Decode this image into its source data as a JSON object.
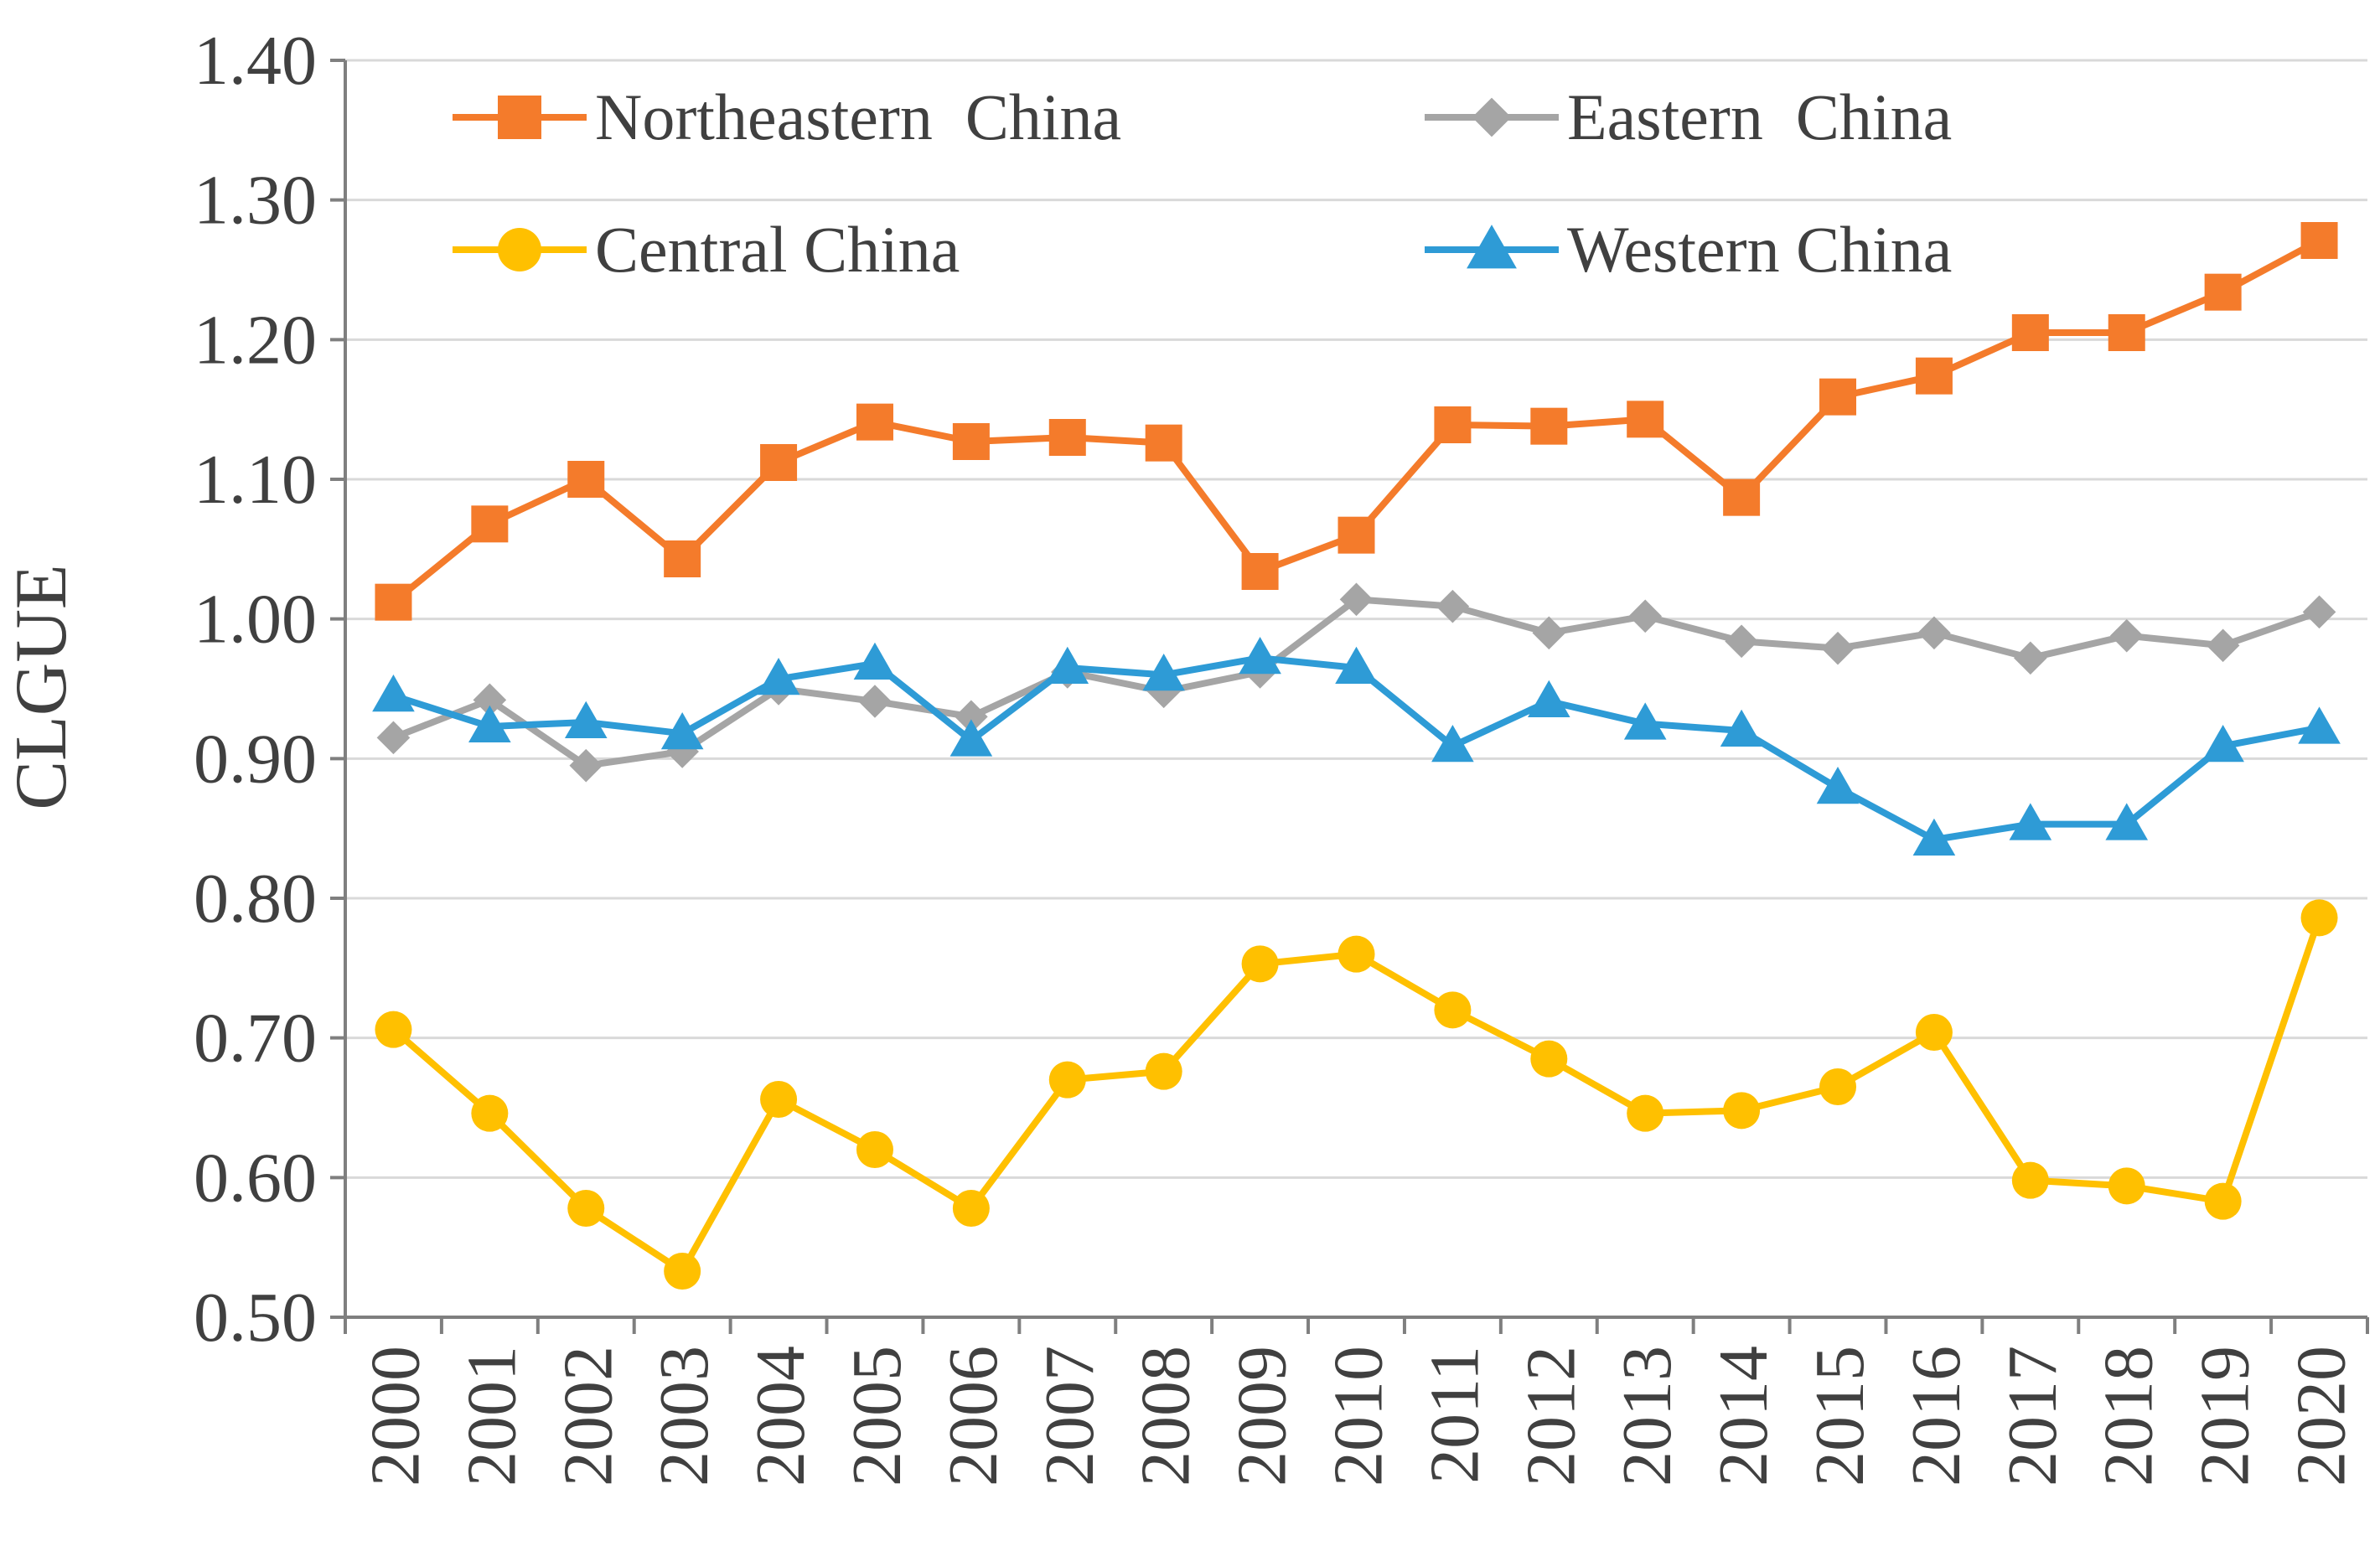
{
  "chart_data": {
    "type": "line",
    "ylabel": "CLGUE",
    "xlabel": "",
    "ylim": [
      0.5,
      1.4
    ],
    "yticks": [
      "0.50",
      "0.60",
      "0.70",
      "0.80",
      "0.90",
      "1.00",
      "1.10",
      "1.20",
      "1.30",
      "1.40"
    ],
    "categories": [
      "2000",
      "2001",
      "2002",
      "2003",
      "2004",
      "2005",
      "2006",
      "2007",
      "2008",
      "2009",
      "2010",
      "2011",
      "2012",
      "2013",
      "2014",
      "2015",
      "2016",
      "2017",
      "2018",
      "2019",
      "2020"
    ],
    "grid": "horizontal",
    "legend_position": "top",
    "series": [
      {
        "name": "Northeastern  China",
        "color": "#F47B2B",
        "marker": "square",
        "values": [
          1.012,
          1.068,
          1.1,
          1.043,
          1.112,
          1.141,
          1.127,
          1.13,
          1.126,
          1.034,
          1.06,
          1.139,
          1.138,
          1.143,
          1.087,
          1.159,
          1.174,
          1.205,
          1.205,
          1.234,
          1.271
        ]
      },
      {
        "name": "Eastern  China",
        "color": "#A5A5A5",
        "marker": "diamond",
        "values": [
          0.915,
          0.942,
          0.895,
          0.905,
          0.95,
          0.941,
          0.93,
          0.962,
          0.948,
          0.962,
          1.014,
          1.009,
          0.99,
          1.002,
          0.984,
          0.979,
          0.99,
          0.972,
          0.988,
          0.981,
          1.005
        ]
      },
      {
        "name": "Central China",
        "color": "#FFC000",
        "marker": "circle",
        "values": [
          0.706,
          0.646,
          0.578,
          0.533,
          0.656,
          0.62,
          0.578,
          0.67,
          0.676,
          0.753,
          0.76,
          0.72,
          0.685,
          0.646,
          0.648,
          0.665,
          0.704,
          0.598,
          0.594,
          0.583,
          0.786
        ]
      },
      {
        "name": "Western China",
        "color": "#2E9BD6",
        "marker": "triangle",
        "values": [
          0.945,
          0.923,
          0.926,
          0.918,
          0.957,
          0.968,
          0.913,
          0.965,
          0.96,
          0.972,
          0.965,
          0.909,
          0.941,
          0.925,
          0.92,
          0.879,
          0.842,
          0.853,
          0.853,
          0.909,
          0.922
        ]
      }
    ]
  }
}
